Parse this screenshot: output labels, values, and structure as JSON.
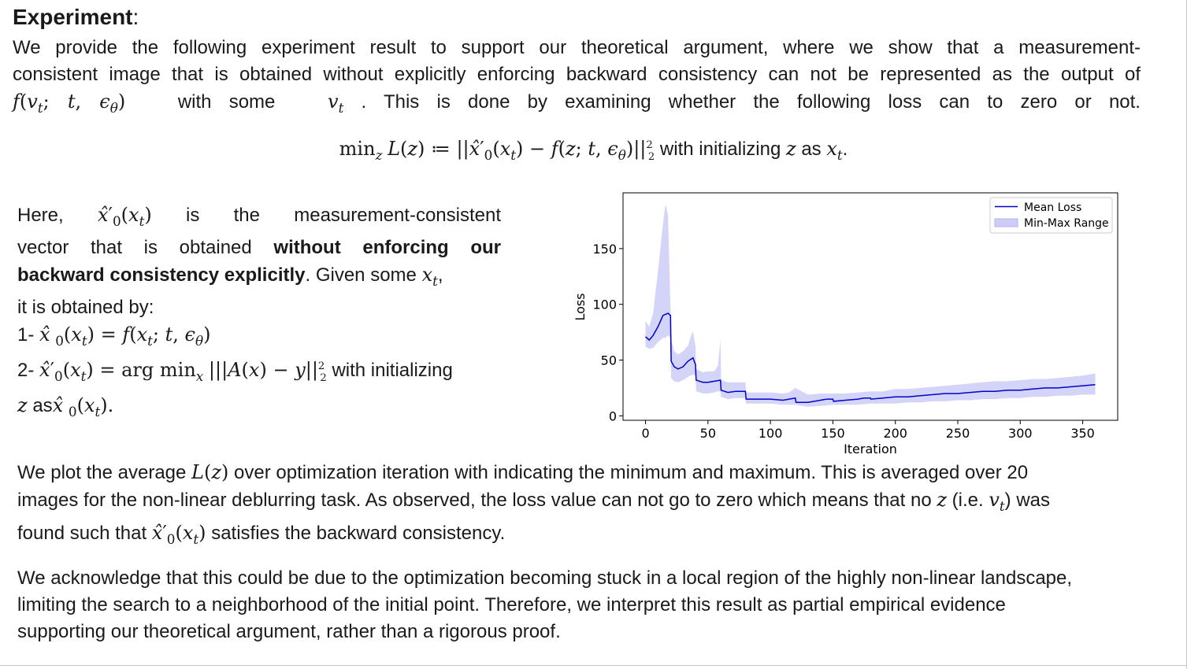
{
  "heading": {
    "title": "Experiment",
    "colon": ":"
  },
  "intro": {
    "line1": "We provide the following experiment result to support our theoretical argument, where we show that a measurement-",
    "line2": "consistent image that is obtained without explicitly enforcing backward consistency can not be represented as the output of",
    "line3_a": "with some",
    "line3_b": ". This is done by examining whether the following loss can to zero or not."
  },
  "equation": {
    "text_with": "with initializing",
    "text_as": "as"
  },
  "left": {
    "here": "Here,",
    "rest1": "is the measurement-consistent",
    "vector_a": "vector that is obtained",
    "vector_b": "without enforcing our",
    "bold2": "backward consistency explicitly",
    "given": ". Given some",
    "obtained": "it is obtained by:",
    "step1": "1-",
    "step2": "2-",
    "step2_with": "with initializing",
    "step2_z_as": "as"
  },
  "para2": {
    "a": "We plot the average",
    "b": "over optimization iteration with indicating the minimum and maximum. This is averaged over 20",
    "c": "images for the non-linear deblurring task. As observed, the loss value can not go to zero which means that no",
    "d": "(i.e.",
    "e": ") was",
    "f": "found such that",
    "g": "satisfies the backward consistency."
  },
  "para3": {
    "line1": "We acknowledge that this could be due to the optimization becoming stuck in a local region of the highly non-linear landscape,",
    "line2": "limiting the search to a neighborhood of the initial point. Therefore, we interpret this result as partial empirical evidence",
    "line3": "supporting our theoretical argument, rather than a rigorous proof."
  },
  "chart_data": {
    "type": "line",
    "xlabel": "Iteration",
    "ylabel": "Loss",
    "xlim": [
      -18,
      378
    ],
    "ylim": [
      -4,
      200
    ],
    "xticks": [
      0,
      50,
      100,
      150,
      200,
      250,
      300,
      350
    ],
    "yticks": [
      0,
      50,
      100,
      150
    ],
    "legend_position": "top-right",
    "grid": false,
    "series": [
      {
        "name": "Mean Loss",
        "color": "#0000cc",
        "x": [
          0,
          3,
          6,
          10,
          14,
          18,
          20,
          20.5,
          23,
          26,
          30,
          34,
          38,
          40,
          40.5,
          46,
          50,
          55,
          60,
          60.5,
          66,
          72,
          80,
          80.5,
          90,
          100,
          110,
          115,
          120,
          120.5,
          130,
          140,
          145,
          150,
          150.5,
          160,
          170,
          175,
          180,
          180.5,
          190,
          200,
          210,
          220,
          230,
          240,
          250,
          260,
          270,
          280,
          290,
          300,
          310,
          320,
          330,
          340,
          350,
          360
        ],
        "y": [
          71,
          68,
          72,
          80,
          90,
          92,
          90,
          49,
          44,
          42,
          44,
          49,
          52,
          46,
          32,
          30,
          30,
          31,
          32,
          23,
          21,
          22,
          22,
          15,
          15,
          15,
          14,
          15,
          16,
          12,
          12,
          14,
          15,
          15,
          13,
          14,
          15,
          16,
          16,
          15,
          16,
          17,
          17,
          18,
          19,
          20,
          20,
          21,
          22,
          22,
          23,
          23,
          24,
          25,
          25,
          26,
          27,
          28
        ]
      },
      {
        "name": "Min-Max Range",
        "color": "#b3b3f5",
        "x": [
          0,
          3,
          6,
          10,
          14,
          16,
          18,
          20,
          20.5,
          23,
          26,
          30,
          34,
          36,
          38,
          40,
          40.5,
          46,
          50,
          55,
          58,
          60,
          60.5,
          66,
          72,
          80,
          80.5,
          90,
          100,
          110,
          115,
          120,
          130,
          140,
          150,
          160,
          170,
          180,
          190,
          200,
          210,
          220,
          230,
          240,
          250,
          260,
          270,
          280,
          290,
          300,
          310,
          320,
          330,
          340,
          350,
          360
        ],
        "ymin": [
          62,
          60,
          61,
          66,
          70,
          70,
          72,
          70,
          34,
          31,
          30,
          32,
          35,
          36,
          37,
          36,
          22,
          20,
          20,
          21,
          22,
          22,
          17,
          15,
          16,
          16,
          11,
          11,
          11,
          10,
          10,
          10,
          8,
          9,
          10,
          10,
          10,
          11,
          11,
          11,
          12,
          12,
          13,
          13,
          14,
          14,
          15,
          15,
          16,
          16,
          17,
          17,
          18,
          18,
          19,
          19
        ],
        "ymax": [
          85,
          80,
          92,
          130,
          172,
          190,
          180,
          95,
          68,
          58,
          55,
          58,
          63,
          70,
          76,
          62,
          42,
          39,
          40,
          40,
          45,
          68,
          32,
          30,
          30,
          30,
          21,
          21,
          21,
          20,
          21,
          25,
          19,
          20,
          20,
          20,
          21,
          22,
          22,
          24,
          24,
          25,
          26,
          27,
          28,
          29,
          30,
          31,
          31,
          32,
          33,
          33,
          34,
          35,
          36,
          38
        ]
      }
    ]
  }
}
